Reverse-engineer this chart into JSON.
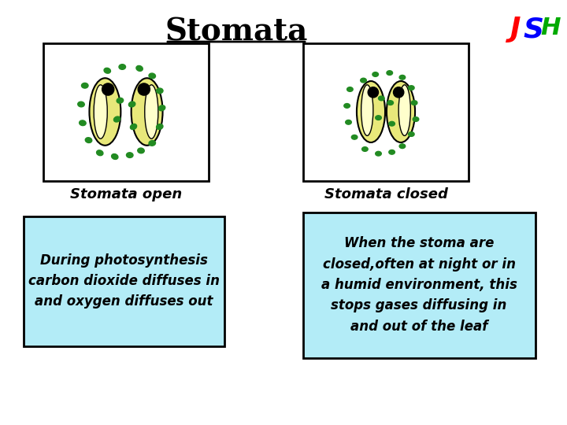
{
  "title": "Stomata",
  "title_fontsize": 28,
  "title_underline": true,
  "bg_color": "#ffffff",
  "label_open": "Stomata open",
  "label_closed": "Stomata closed",
  "text_open": "During photosynthesis\ncarbon dioxide diffuses in\nand oxygen diffuses out",
  "text_closed": "When the stoma are\nclosed,often at night or in\na humid environment, this\nstops gases diffusing in\nand out of the leaf",
  "box_bg": "#b3ecf7",
  "box_border": "#000000",
  "yellow_green": "#e8e87a",
  "light_yellow": "#ffffcc",
  "dark_green": "#228B22",
  "black": "#000000",
  "logo_J": "#ff0000",
  "logo_S": "#0000ff",
  "logo_H": "#00aa00"
}
